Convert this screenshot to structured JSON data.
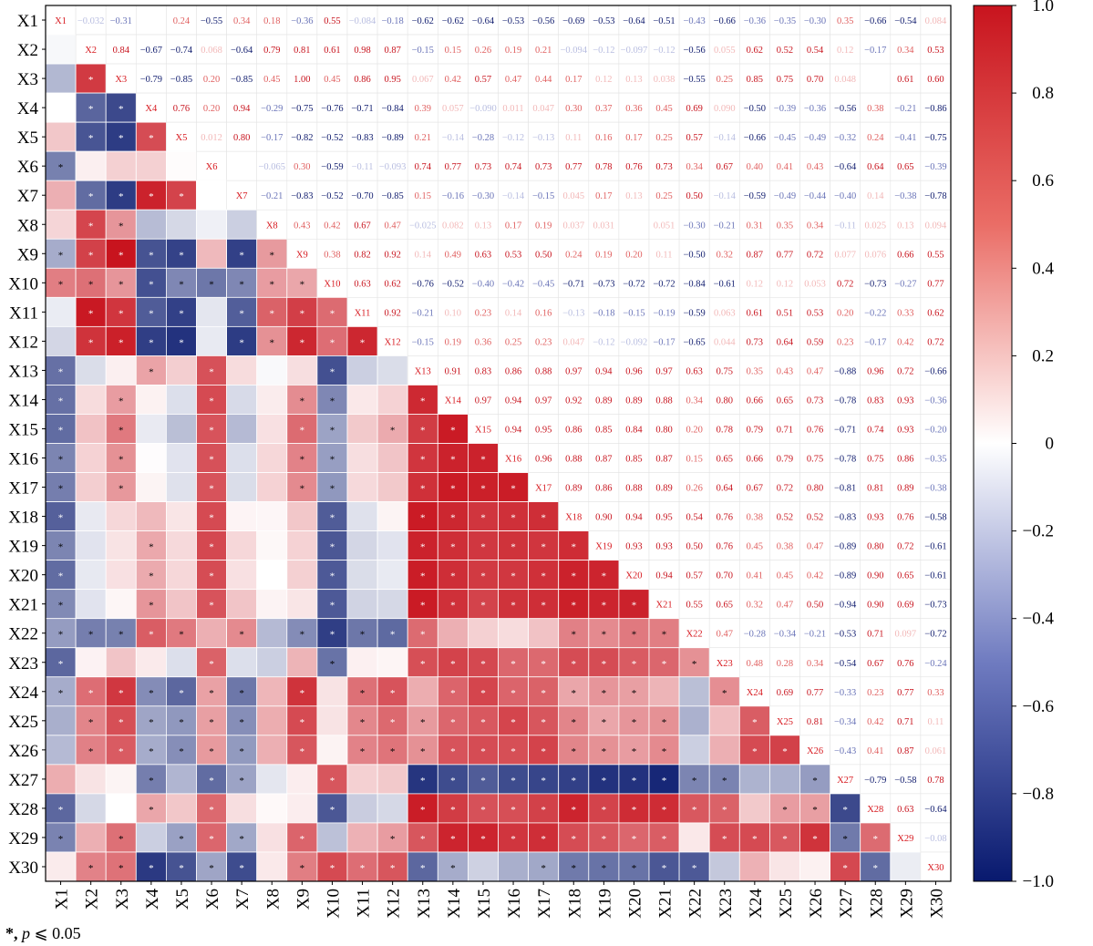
{
  "chart_data": {
    "type": "heatmap",
    "title": "",
    "labels": [
      "X1",
      "X2",
      "X3",
      "X4",
      "X5",
      "X6",
      "X7",
      "X8",
      "X9",
      "X10",
      "X11",
      "X12",
      "X13",
      "X14",
      "X15",
      "X16",
      "X17",
      "X18",
      "X19",
      "X20",
      "X21",
      "X22",
      "X23",
      "X24",
      "X25",
      "X26",
      "X27",
      "X28",
      "X29",
      "X30"
    ],
    "upper_values": [
      [
        null,
        -0.032,
        -0.31,
        -0.0,
        0.24,
        -0.55,
        0.34,
        0.18,
        -0.36,
        0.55,
        -0.084,
        -0.18,
        -0.62,
        -0.62,
        -0.64,
        -0.53,
        -0.56,
        -0.69,
        -0.53,
        -0.64,
        -0.51,
        -0.43,
        -0.66,
        -0.36,
        -0.35,
        -0.3,
        0.35,
        -0.66,
        -0.54,
        0.084
      ],
      [
        null,
        null,
        0.84,
        -0.67,
        -0.74,
        0.068,
        -0.64,
        0.79,
        0.81,
        0.61,
        0.98,
        0.87,
        -0.15,
        0.15,
        0.26,
        0.19,
        0.21,
        -0.094,
        -0.12,
        -0.097,
        -0.12,
        -0.56,
        0.055,
        0.62,
        0.52,
        0.54,
        0.12,
        -0.17,
        0.34,
        0.53
      ],
      [
        null,
        null,
        null,
        -0.79,
        -0.85,
        0.2,
        -0.85,
        0.45,
        1.0,
        0.45,
        0.86,
        0.95,
        0.067,
        0.42,
        0.57,
        0.47,
        0.44,
        0.17,
        0.12,
        0.13,
        0.038,
        -0.55,
        0.25,
        0.85,
        0.75,
        0.7,
        0.048,
        0.0,
        0.61,
        0.6
      ],
      [
        null,
        null,
        null,
        null,
        0.76,
        0.2,
        0.94,
        -0.29,
        -0.75,
        -0.76,
        -0.71,
        -0.84,
        0.39,
        0.057,
        -0.09,
        0.011,
        0.047,
        0.3,
        0.37,
        0.36,
        0.45,
        0.69,
        0.09,
        -0.5,
        -0.39,
        -0.36,
        -0.56,
        0.38,
        -0.21,
        -0.86
      ],
      [
        null,
        null,
        null,
        null,
        null,
        0.012,
        0.8,
        -0.17,
        -0.82,
        -0.52,
        -0.83,
        -0.89,
        0.21,
        -0.14,
        -0.28,
        -0.12,
        -0.13,
        0.11,
        0.16,
        0.17,
        0.25,
        0.57,
        -0.14,
        -0.66,
        -0.45,
        -0.49,
        -0.32,
        0.24,
        -0.41,
        -0.75
      ],
      [
        null,
        null,
        null,
        null,
        null,
        null,
        0.0,
        -0.065,
        0.3,
        -0.59,
        -0.11,
        -0.093,
        0.74,
        0.77,
        0.73,
        0.74,
        0.73,
        0.77,
        0.78,
        0.76,
        0.73,
        0.34,
        0.67,
        0.4,
        0.41,
        0.43,
        -0.64,
        0.64,
        0.65,
        -0.39
      ],
      [
        null,
        null,
        null,
        null,
        null,
        null,
        null,
        -0.21,
        -0.83,
        -0.52,
        -0.7,
        -0.85,
        0.15,
        -0.16,
        -0.3,
        -0.14,
        -0.15,
        0.045,
        0.17,
        0.13,
        0.25,
        0.5,
        -0.14,
        -0.59,
        -0.49,
        -0.44,
        -0.4,
        0.14,
        -0.38,
        -0.78
      ],
      [
        null,
        null,
        null,
        null,
        null,
        null,
        null,
        null,
        0.43,
        0.42,
        0.67,
        0.47,
        -0.025,
        0.082,
        0.13,
        0.17,
        0.19,
        0.037,
        0.031,
        0.0,
        0.051,
        -0.3,
        -0.21,
        0.31,
        0.35,
        0.34,
        -0.11,
        0.025,
        0.13,
        0.094
      ],
      [
        null,
        null,
        null,
        null,
        null,
        null,
        null,
        null,
        null,
        0.38,
        0.82,
        0.92,
        0.14,
        0.49,
        0.63,
        0.53,
        0.5,
        0.24,
        0.19,
        0.2,
        0.11,
        -0.5,
        0.32,
        0.87,
        0.77,
        0.72,
        0.077,
        0.076,
        0.66,
        0.55
      ],
      [
        null,
        null,
        null,
        null,
        null,
        null,
        null,
        null,
        null,
        null,
        0.63,
        0.62,
        -0.76,
        -0.52,
        -0.4,
        -0.42,
        -0.45,
        -0.71,
        -0.73,
        -0.72,
        -0.72,
        -0.84,
        -0.61,
        0.12,
        0.12,
        0.053,
        0.72,
        -0.73,
        -0.27,
        0.77
      ],
      [
        null,
        null,
        null,
        null,
        null,
        null,
        null,
        null,
        null,
        null,
        null,
        0.92,
        -0.21,
        0.1,
        0.23,
        0.14,
        0.16,
        -0.13,
        -0.18,
        -0.15,
        -0.19,
        -0.59,
        0.063,
        0.61,
        0.51,
        0.53,
        0.2,
        -0.22,
        0.33,
        0.62
      ],
      [
        null,
        null,
        null,
        null,
        null,
        null,
        null,
        null,
        null,
        null,
        null,
        null,
        -0.15,
        0.19,
        0.36,
        0.25,
        0.23,
        0.047,
        -0.12,
        -0.092,
        -0.17,
        -0.65,
        0.044,
        0.73,
        0.64,
        0.59,
        0.23,
        -0.17,
        0.42,
        0.72
      ],
      [
        null,
        null,
        null,
        null,
        null,
        null,
        null,
        null,
        null,
        null,
        null,
        null,
        null,
        0.91,
        0.83,
        0.86,
        0.88,
        0.97,
        0.94,
        0.96,
        0.97,
        0.63,
        0.75,
        0.35,
        0.43,
        0.47,
        -0.88,
        0.96,
        0.72,
        -0.66
      ],
      [
        null,
        null,
        null,
        null,
        null,
        null,
        null,
        null,
        null,
        null,
        null,
        null,
        null,
        null,
        0.97,
        0.94,
        0.97,
        0.92,
        0.89,
        0.89,
        0.88,
        0.34,
        0.8,
        0.66,
        0.65,
        0.73,
        -0.78,
        0.83,
        0.93,
        -0.36
      ],
      [
        null,
        null,
        null,
        null,
        null,
        null,
        null,
        null,
        null,
        null,
        null,
        null,
        null,
        null,
        null,
        0.94,
        0.95,
        0.86,
        0.85,
        0.84,
        0.8,
        0.2,
        0.78,
        0.79,
        0.71,
        0.76,
        -0.71,
        0.74,
        0.93,
        -0.2
      ],
      [
        null,
        null,
        null,
        null,
        null,
        null,
        null,
        null,
        null,
        null,
        null,
        null,
        null,
        null,
        null,
        null,
        0.96,
        0.88,
        0.87,
        0.85,
        0.87,
        0.15,
        0.65,
        0.66,
        0.79,
        0.75,
        -0.78,
        0.75,
        0.86,
        -0.35
      ],
      [
        null,
        null,
        null,
        null,
        null,
        null,
        null,
        null,
        null,
        null,
        null,
        null,
        null,
        null,
        null,
        null,
        null,
        0.89,
        0.86,
        0.88,
        0.89,
        0.26,
        0.64,
        0.67,
        0.72,
        0.8,
        -0.81,
        0.81,
        0.89,
        -0.38
      ],
      [
        null,
        null,
        null,
        null,
        null,
        null,
        null,
        null,
        null,
        null,
        null,
        null,
        null,
        null,
        null,
        null,
        null,
        null,
        0.9,
        0.94,
        0.95,
        0.54,
        0.76,
        0.38,
        0.52,
        0.52,
        -0.83,
        0.93,
        0.76,
        -0.58
      ],
      [
        null,
        null,
        null,
        null,
        null,
        null,
        null,
        null,
        null,
        null,
        null,
        null,
        null,
        null,
        null,
        null,
        null,
        null,
        null,
        0.93,
        0.93,
        0.5,
        0.76,
        0.45,
        0.38,
        0.47,
        -0.89,
        0.8,
        0.72,
        -0.61
      ],
      [
        null,
        null,
        null,
        null,
        null,
        null,
        null,
        null,
        null,
        null,
        null,
        null,
        null,
        null,
        null,
        null,
        null,
        null,
        null,
        null,
        0.94,
        0.57,
        0.7,
        0.41,
        0.45,
        0.42,
        -0.89,
        0.9,
        0.65,
        -0.61
      ],
      [
        null,
        null,
        null,
        null,
        null,
        null,
        null,
        null,
        null,
        null,
        null,
        null,
        null,
        null,
        null,
        null,
        null,
        null,
        null,
        null,
        null,
        0.55,
        0.65,
        0.32,
        0.47,
        0.5,
        -0.94,
        0.9,
        0.69,
        -0.73
      ],
      [
        null,
        null,
        null,
        null,
        null,
        null,
        null,
        null,
        null,
        null,
        null,
        null,
        null,
        null,
        null,
        null,
        null,
        null,
        null,
        null,
        null,
        null,
        0.47,
        -0.28,
        -0.34,
        -0.21,
        -0.53,
        0.71,
        0.097,
        -0.72
      ],
      [
        null,
        null,
        null,
        null,
        null,
        null,
        null,
        null,
        null,
        null,
        null,
        null,
        null,
        null,
        null,
        null,
        null,
        null,
        null,
        null,
        null,
        null,
        null,
        0.48,
        0.28,
        0.34,
        -0.54,
        0.67,
        0.76,
        -0.24
      ],
      [
        null,
        null,
        null,
        null,
        null,
        null,
        null,
        null,
        null,
        null,
        null,
        null,
        null,
        null,
        null,
        null,
        null,
        null,
        null,
        null,
        null,
        null,
        null,
        null,
        0.69,
        0.77,
        -0.33,
        0.23,
        0.77,
        0.33
      ],
      [
        null,
        null,
        null,
        null,
        null,
        null,
        null,
        null,
        null,
        null,
        null,
        null,
        null,
        null,
        null,
        null,
        null,
        null,
        null,
        null,
        null,
        null,
        null,
        null,
        null,
        0.81,
        -0.34,
        0.42,
        0.71,
        0.11
      ],
      [
        null,
        null,
        null,
        null,
        null,
        null,
        null,
        null,
        null,
        null,
        null,
        null,
        null,
        null,
        null,
        null,
        null,
        null,
        null,
        null,
        null,
        null,
        null,
        null,
        null,
        null,
        -0.43,
        0.41,
        0.87,
        0.061
      ],
      [
        null,
        null,
        null,
        null,
        null,
        null,
        null,
        null,
        null,
        null,
        null,
        null,
        null,
        null,
        null,
        null,
        null,
        null,
        null,
        null,
        null,
        null,
        null,
        null,
        null,
        null,
        null,
        -0.79,
        -0.58,
        0.78
      ],
      [
        null,
        null,
        null,
        null,
        null,
        null,
        null,
        null,
        null,
        null,
        null,
        null,
        null,
        null,
        null,
        null,
        null,
        null,
        null,
        null,
        null,
        null,
        null,
        null,
        null,
        null,
        null,
        null,
        0.63,
        -0.64
      ],
      [
        null,
        null,
        null,
        null,
        null,
        null,
        null,
        null,
        null,
        null,
        null,
        null,
        null,
        null,
        null,
        null,
        null,
        null,
        null,
        null,
        null,
        null,
        null,
        null,
        null,
        null,
        null,
        null,
        null,
        -0.08
      ],
      [
        null,
        null,
        null,
        null,
        null,
        null,
        null,
        null,
        null,
        null,
        null,
        null,
        null,
        null,
        null,
        null,
        null,
        null,
        null,
        null,
        null,
        null,
        null,
        null,
        null,
        null,
        null,
        null,
        null,
        null
      ]
    ],
    "value_text_overrides": {
      "0,1": "−0.032",
      "0,3": "",
      "0,10": "−0.084",
      "0,29": "0.084",
      "1,5": "0.068",
      "1,16": "0.21",
      "1,17": "−0.094",
      "1,19": "−0.097",
      "1,22": "0.055",
      "2,12": "0.067",
      "2,20": "0.038",
      "2,26": "0.048",
      "2,27": "",
      "3,13": "0.057",
      "3,14": "−0.090",
      "3,15": "0.011",
      "3,16": "0.047",
      "3,22": "0.090",
      "4,5": "0.012",
      "5,6": "",
      "5,7": "−0.065",
      "5,11": "−0.093",
      "6,17": "0.045",
      "7,12": "−0.025",
      "7,13": "0.082",
      "7,17": "0.037",
      "7,18": "0.031",
      "7,19": "",
      "7,20": "0.051",
      "7,27": "0.025",
      "7,29": "0.094",
      "8,26": "0.077",
      "8,27": "0.076",
      "9,25": "0.053",
      "10,22": "0.063",
      "11,17": "0.047",
      "11,19": "−0.092",
      "11,22": "0.044",
      "21,28": "0.097",
      "25,29": "0.061",
      "28,29": "−0.08"
    },
    "significance_marker": "*",
    "cbar_ticks": [
      1.0,
      0.8,
      0.6,
      0.4,
      0.2,
      0,
      -0.2,
      -0.4,
      -0.6,
      -0.8,
      -1.0
    ],
    "cbar_tick_labels": [
      "1.0",
      "0.8",
      "0.6",
      "0.4",
      "0.2",
      "0",
      "−0.2",
      "−0.4",
      "−0.6",
      "−0.8",
      "−1.0"
    ],
    "vmin": -1.0,
    "vmax": 1.0,
    "colormap": [
      "#08196e",
      "#ffffff",
      "#c8141e"
    ],
    "footnote": "*, p ⩽ 0.05"
  }
}
